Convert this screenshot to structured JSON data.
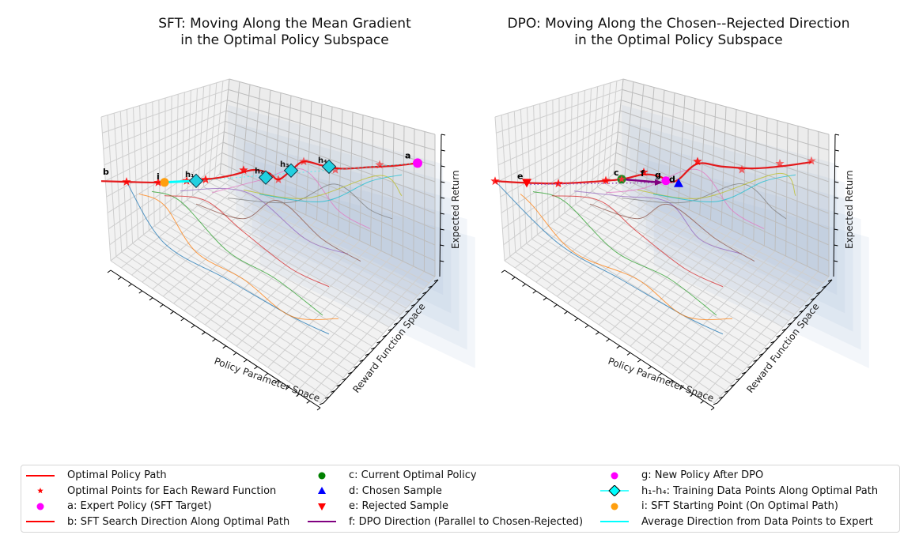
{
  "chart_data": [
    {
      "type": "3d-line",
      "id": "sft",
      "title": "SFT: Moving Along the Mean Gradient\nin the Optimal Policy Subspace",
      "xlabel": "Policy Parameter Space",
      "ylabel": "Reward Function Space",
      "zlabel": "Expected Return",
      "tick_labels_shown": false,
      "grid": true,
      "optimal_path": {
        "color": "#e31a1c",
        "points": [
          [
            0,
            0.72
          ],
          [
            0.08,
            0.71
          ],
          [
            0.18,
            0.7
          ],
          [
            0.27,
            0.71
          ],
          [
            0.36,
            0.73
          ],
          [
            0.42,
            0.76
          ],
          [
            0.48,
            0.8
          ],
          [
            0.53,
            0.77
          ],
          [
            0.56,
            0.71
          ],
          [
            0.6,
            0.79
          ],
          [
            0.64,
            0.87
          ],
          [
            0.7,
            0.83
          ],
          [
            0.76,
            0.8
          ],
          [
            0.85,
            0.81
          ],
          [
            0.93,
            0.82
          ],
          [
            1.0,
            0.84
          ]
        ]
      },
      "optimal_stars": [
        [
          0.08,
          0.71
        ],
        [
          0.18,
          0.7
        ],
        [
          0.27,
          0.71
        ],
        [
          0.33,
          0.72
        ],
        [
          0.45,
          0.8
        ],
        [
          0.56,
          0.71
        ],
        [
          0.64,
          0.87
        ],
        [
          0.74,
          0.79
        ],
        [
          0.88,
          0.83
        ]
      ],
      "reward_curves": [
        {
          "color": "#1f77b4",
          "points": [
            [
              0.08,
              0.71
            ],
            [
              0.2,
              0.5
            ],
            [
              0.4,
              0.3
            ],
            [
              0.6,
              0.1
            ],
            [
              0.72,
              0.0
            ]
          ]
        },
        {
          "color": "#ff7f0e",
          "points": [
            [
              0.12,
              0.6
            ],
            [
              0.2,
              0.7
            ],
            [
              0.3,
              0.45
            ],
            [
              0.45,
              0.3
            ],
            [
              0.6,
              0.1
            ],
            [
              0.75,
              0.08
            ]
          ]
        },
        {
          "color": "#2ca02c",
          "points": [
            [
              0.16,
              0.62
            ],
            [
              0.25,
              0.72
            ],
            [
              0.4,
              0.45
            ],
            [
              0.55,
              0.3
            ],
            [
              0.7,
              0.1
            ]
          ]
        },
        {
          "color": "#d62728",
          "points": [
            [
              0.2,
              0.58
            ],
            [
              0.33,
              0.72
            ],
            [
              0.45,
              0.55
            ],
            [
              0.6,
              0.35
            ],
            [
              0.72,
              0.25
            ]
          ]
        },
        {
          "color": "#9467bd",
          "points": [
            [
              0.25,
              0.62
            ],
            [
              0.4,
              0.78
            ],
            [
              0.5,
              0.72
            ],
            [
              0.65,
              0.5
            ],
            [
              0.78,
              0.42
            ]
          ]
        },
        {
          "color": "#8c564b",
          "points": [
            [
              0.3,
              0.5
            ],
            [
              0.45,
              0.62
            ],
            [
              0.56,
              0.71
            ],
            [
              0.7,
              0.5
            ],
            [
              0.82,
              0.38
            ]
          ]
        },
        {
          "color": "#e377c2",
          "points": [
            [
              0.35,
              0.6
            ],
            [
              0.5,
              0.82
            ],
            [
              0.64,
              0.87
            ],
            [
              0.75,
              0.65
            ],
            [
              0.85,
              0.55
            ]
          ]
        },
        {
          "color": "#7f7f7f",
          "points": [
            [
              0.4,
              0.55
            ],
            [
              0.6,
              0.7
            ],
            [
              0.74,
              0.79
            ],
            [
              0.85,
              0.65
            ],
            [
              0.92,
              0.6
            ]
          ]
        },
        {
          "color": "#bcbd22",
          "points": [
            [
              0.45,
              0.62
            ],
            [
              0.65,
              0.72
            ],
            [
              0.88,
              0.83
            ],
            [
              0.95,
              0.72
            ]
          ]
        },
        {
          "color": "#17becf",
          "points": [
            [
              0.5,
              0.58
            ],
            [
              0.7,
              0.7
            ],
            [
              0.85,
              0.8
            ],
            [
              0.95,
              0.83
            ]
          ]
        }
      ],
      "points": {
        "a": {
          "label": "a",
          "pos": [
            1.0,
            0.84
          ],
          "color": "#ff00ff",
          "marker": "circle"
        },
        "b": {
          "label": "b",
          "pos": [
            0.0,
            0.72
          ],
          "color": "#ff0000",
          "marker": "line-start"
        },
        "i": {
          "label": "i",
          "pos": [
            0.2,
            0.7
          ],
          "color": "#ff9f0e",
          "marker": "circle"
        },
        "h": [
          {
            "label": "h₁",
            "pos": [
              0.3,
              0.71
            ]
          },
          {
            "label": "h₂",
            "pos": [
              0.52,
              0.73
            ]
          },
          {
            "label": "h₃",
            "pos": [
              0.6,
              0.79
            ]
          },
          {
            "label": "h₄",
            "pos": [
              0.72,
              0.82
            ]
          }
        ]
      },
      "avg_direction": {
        "color": "#00ffff",
        "from": [
          0.2,
          0.7
        ],
        "to": [
          0.3,
          0.71
        ]
      }
    },
    {
      "type": "3d-line",
      "id": "dpo",
      "title": "DPO: Moving Along the Chosen--Rejected Direction\nin the Optimal Policy Subspace",
      "xlabel": "Policy Parameter Space",
      "ylabel": "Reward Function Space",
      "zlabel": "Expected Return",
      "tick_labels_shown": false,
      "grid": true,
      "optimal_path": {
        "color": "#e31a1c",
        "points": [
          [
            0,
            0.72
          ],
          [
            0.1,
            0.7
          ],
          [
            0.2,
            0.69
          ],
          [
            0.3,
            0.7
          ],
          [
            0.4,
            0.72
          ],
          [
            0.47,
            0.76
          ],
          [
            0.52,
            0.74
          ],
          [
            0.55,
            0.69
          ],
          [
            0.58,
            0.71
          ],
          [
            0.64,
            0.85
          ],
          [
            0.72,
            0.82
          ],
          [
            0.82,
            0.8
          ],
          [
            0.92,
            0.82
          ],
          [
            1.0,
            0.85
          ]
        ]
      },
      "optimal_stars": [
        [
          0,
          0.72
        ],
        [
          0.2,
          0.69
        ],
        [
          0.35,
          0.71
        ],
        [
          0.47,
          0.78
        ],
        [
          0.64,
          0.87
        ],
        [
          0.78,
          0.79
        ],
        [
          0.9,
          0.84
        ],
        [
          1.0,
          0.86
        ]
      ],
      "reward_curves": [
        {
          "color": "#1f77b4",
          "points": [
            [
              0,
              0.72
            ],
            [
              0.2,
              0.5
            ],
            [
              0.4,
              0.3
            ],
            [
              0.6,
              0.1
            ],
            [
              0.72,
              0.0
            ]
          ]
        },
        {
          "color": "#ff7f0e",
          "points": [
            [
              0.08,
              0.6
            ],
            [
              0.12,
              0.7
            ],
            [
              0.25,
              0.45
            ],
            [
              0.45,
              0.3
            ],
            [
              0.6,
              0.1
            ],
            [
              0.75,
              0.08
            ]
          ]
        },
        {
          "color": "#2ca02c",
          "points": [
            [
              0.12,
              0.62
            ],
            [
              0.22,
              0.72
            ],
            [
              0.38,
              0.45
            ],
            [
              0.55,
              0.3
            ],
            [
              0.7,
              0.1
            ]
          ]
        },
        {
          "color": "#d62728",
          "points": [
            [
              0.18,
              0.58
            ],
            [
              0.33,
              0.72
            ],
            [
              0.45,
              0.55
            ],
            [
              0.6,
              0.35
            ],
            [
              0.72,
              0.25
            ]
          ]
        },
        {
          "color": "#9467bd",
          "points": [
            [
              0.25,
              0.62
            ],
            [
              0.4,
              0.74
            ],
            [
              0.55,
              0.7
            ],
            [
              0.65,
              0.5
            ],
            [
              0.78,
              0.42
            ]
          ]
        },
        {
          "color": "#8c564b",
          "points": [
            [
              0.3,
              0.5
            ],
            [
              0.45,
              0.62
            ],
            [
              0.55,
              0.69
            ],
            [
              0.7,
              0.5
            ],
            [
              0.82,
              0.38
            ]
          ]
        },
        {
          "color": "#e377c2",
          "points": [
            [
              0.35,
              0.6
            ],
            [
              0.47,
              0.78
            ],
            [
              0.64,
              0.87
            ],
            [
              0.75,
              0.65
            ],
            [
              0.85,
              0.55
            ]
          ]
        },
        {
          "color": "#7f7f7f",
          "points": [
            [
              0.4,
              0.55
            ],
            [
              0.6,
              0.7
            ],
            [
              0.78,
              0.79
            ],
            [
              0.88,
              0.65
            ],
            [
              0.92,
              0.6
            ]
          ]
        },
        {
          "color": "#bcbd22",
          "points": [
            [
              0.45,
              0.62
            ],
            [
              0.65,
              0.72
            ],
            [
              0.9,
              0.84
            ],
            [
              0.95,
              0.72
            ]
          ]
        },
        {
          "color": "#17becf",
          "points": [
            [
              0.5,
              0.58
            ],
            [
              0.7,
              0.7
            ],
            [
              0.85,
              0.8
            ],
            [
              0.95,
              0.83
            ]
          ]
        }
      ],
      "points": {
        "c": {
          "label": "c",
          "pos": [
            0.4,
            0.72
          ],
          "color": "#228b22",
          "marker": "circle"
        },
        "d": {
          "label": "d",
          "pos": [
            0.58,
            0.67
          ],
          "color": "#0000ff",
          "marker": "triangle-up"
        },
        "e": {
          "label": "e",
          "pos": [
            0.1,
            0.7
          ],
          "color": "#ff0000",
          "marker": "triangle-down"
        },
        "f": {
          "label": "f",
          "from": [
            0.4,
            0.72
          ],
          "to": [
            0.52,
            0.7
          ],
          "color": "#800080"
        },
        "g": {
          "label": "g",
          "pos": [
            0.54,
            0.7
          ],
          "color": "#ff00ff",
          "marker": "circle"
        }
      }
    }
  ],
  "legend": {
    "columns": [
      [
        {
          "label": "Optimal Policy Path",
          "handle": "line",
          "color": "#ff0000"
        },
        {
          "label": "Optimal Points for Each Reward Function",
          "handle": "star",
          "color": "#ff0000"
        },
        {
          "label": "a: Expert Policy (SFT Target)",
          "handle": "circle",
          "color": "#ff00ff"
        },
        {
          "label": "b: SFT Search Direction Along Optimal Path",
          "handle": "line",
          "color": "#ff0000"
        }
      ],
      [
        {
          "label": "c: Current Optimal Policy",
          "handle": "circle",
          "color": "#008000"
        },
        {
          "label": "d: Chosen Sample",
          "handle": "triangle-up",
          "color": "#0000ff"
        },
        {
          "label": "e: Rejected Sample",
          "handle": "triangle-down",
          "color": "#ff0000"
        },
        {
          "label": "f: DPO Direction (Parallel to Chosen-Rejected)",
          "handle": "line",
          "color": "#800080"
        }
      ],
      [
        {
          "label": "g: New Policy After DPO",
          "handle": "circle",
          "color": "#ff00ff"
        },
        {
          "label": "h₁-h₄: Training Data Points Along Optimal Path",
          "handle": "diamond-line",
          "color": "#00ffff"
        },
        {
          "label": "i: SFT Starting Point (On Optimal Path)",
          "handle": "circle",
          "color": "#ff9f0e"
        },
        {
          "label": "Average Direction from Data Points to Expert",
          "handle": "line",
          "color": "#00ffff"
        }
      ]
    ]
  }
}
